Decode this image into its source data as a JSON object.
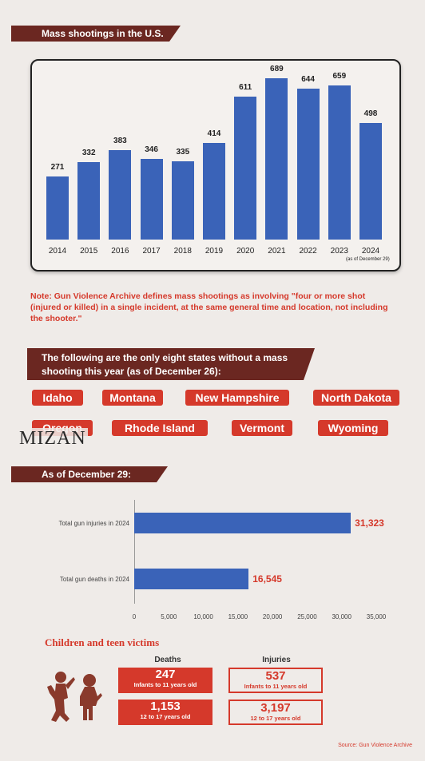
{
  "banners": {
    "mass_shootings": "Mass shootings in the U.S.",
    "states": "The following are the only eight states without a mass shooting this year (as of December 26):",
    "as_of": "As of December 29:"
  },
  "note": "Note: Gun Violence Archive defines mass shootings as involving \"four or more shot (injured or killed) in a single incident, at the same general time and location, not including the shooter.\"",
  "states": [
    "Idaho",
    "Montana",
    "New Hampshire",
    "North Dakota",
    "Oregon",
    "Rhode Island",
    "Vermont",
    "Wyoming"
  ],
  "watermark": "MIZAN",
  "children": {
    "title": "Children and teen victims",
    "deaths_label": "Deaths",
    "injuries_label": "Injuries",
    "deaths": [
      {
        "value": "247",
        "label": "Infants to 11 years old"
      },
      {
        "value": "1,153",
        "label": "12 to 17 years old"
      }
    ],
    "injuries": [
      {
        "value": "537",
        "label": "Infants to 11 years old"
      },
      {
        "value": "3,197",
        "label": "12 to 17 years old"
      }
    ]
  },
  "source": "Source: Gun Violence Archive",
  "colors": {
    "bar": "#3a63b8",
    "accent": "#d5392b",
    "banner": "#6b2721"
  },
  "icons": [
    "children-silhouette-icon"
  ],
  "chart_data": [
    {
      "type": "bar",
      "title": "",
      "categories": [
        "2014",
        "2015",
        "2016",
        "2017",
        "2018",
        "2019",
        "2020",
        "2021",
        "2022",
        "2023",
        "2024"
      ],
      "values": [
        271,
        332,
        383,
        346,
        335,
        414,
        611,
        689,
        644,
        659,
        498
      ],
      "annotation": "(as of December 29)",
      "ylim": [
        0,
        750
      ]
    },
    {
      "type": "bar",
      "orientation": "horizontal",
      "categories": [
        "Total gun injuries in 2024",
        "Total gun deaths in 2024"
      ],
      "values": [
        31323,
        16545
      ],
      "value_labels": [
        "31,323",
        "16,545"
      ],
      "xlim": [
        0,
        35000
      ],
      "xticks": [
        "0",
        "5,000",
        "10,000",
        "15,000",
        "20,000",
        "25,000",
        "30,000",
        "35,000"
      ]
    }
  ]
}
